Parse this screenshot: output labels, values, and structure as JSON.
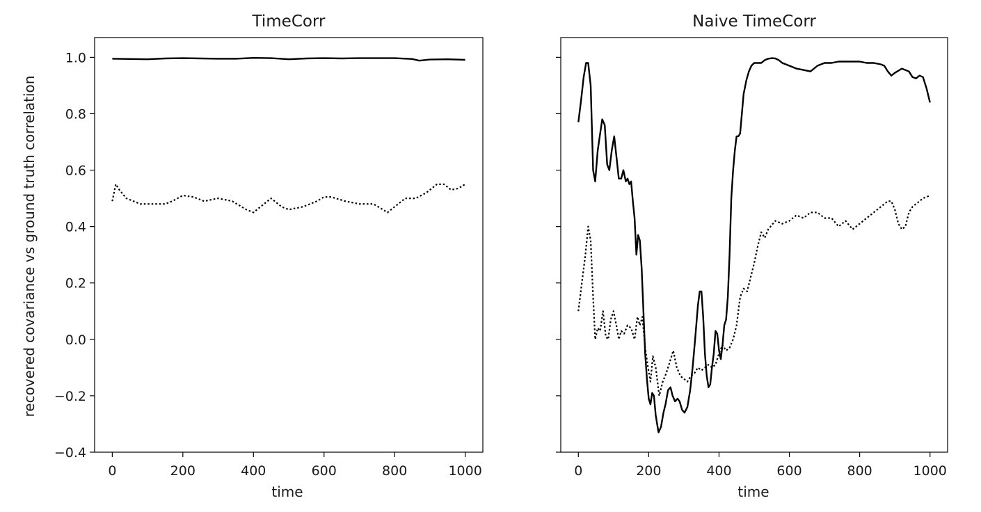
{
  "chart_data": [
    {
      "type": "line",
      "title": "TimeCorr",
      "xlabel": "time",
      "ylabel": "recovered covariance vs ground truth correlation",
      "xlim": [
        -50,
        1050
      ],
      "ylim": [
        -0.4,
        1.07
      ],
      "xticks": [
        0,
        200,
        400,
        600,
        800,
        1000
      ],
      "xtick_labels": [
        "0",
        "200",
        "400",
        "600",
        "800",
        "1000"
      ],
      "yticks": [
        -0.4,
        -0.2,
        0.0,
        0.2,
        0.4,
        0.6,
        0.8,
        1.0
      ],
      "ytick_labels": [
        "−0.4",
        "−0.2",
        "0.0",
        "0.2",
        "0.4",
        "0.6",
        "0.8",
        "1.0"
      ],
      "grid": false,
      "series": [
        {
          "style": "solid",
          "color": "#000000",
          "x": [
            0,
            50,
            100,
            150,
            200,
            250,
            300,
            350,
            400,
            450,
            500,
            550,
            600,
            650,
            700,
            750,
            800,
            850,
            870,
            900,
            950,
            1000
          ],
          "y": [
            0.995,
            0.994,
            0.993,
            0.996,
            0.997,
            0.996,
            0.995,
            0.995,
            0.998,
            0.997,
            0.993,
            0.996,
            0.997,
            0.996,
            0.997,
            0.997,
            0.997,
            0.994,
            0.988,
            0.992,
            0.993,
            0.991
          ]
        },
        {
          "style": "dotted",
          "color": "#000000",
          "x": [
            0,
            10,
            20,
            40,
            60,
            80,
            100,
            120,
            150,
            170,
            200,
            230,
            260,
            300,
            340,
            380,
            400,
            420,
            450,
            480,
            500,
            540,
            580,
            600,
            620,
            660,
            700,
            740,
            760,
            780,
            800,
            830,
            860,
            890,
            920,
            940,
            960,
            980,
            1000
          ],
          "y": [
            0.49,
            0.55,
            0.53,
            0.5,
            0.49,
            0.48,
            0.48,
            0.48,
            0.48,
            0.49,
            0.51,
            0.505,
            0.49,
            0.5,
            0.49,
            0.46,
            0.45,
            0.47,
            0.5,
            0.47,
            0.46,
            0.47,
            0.49,
            0.505,
            0.505,
            0.49,
            0.48,
            0.48,
            0.465,
            0.45,
            0.47,
            0.5,
            0.5,
            0.52,
            0.55,
            0.55,
            0.53,
            0.535,
            0.55
          ]
        }
      ]
    },
    {
      "type": "line",
      "title": "Naive TimeCorr",
      "xlabel": "time",
      "xlim": [
        -50,
        1050
      ],
      "ylim": [
        -0.4,
        1.07
      ],
      "xticks": [
        0,
        200,
        400,
        600,
        800,
        1000
      ],
      "xtick_labels": [
        "0",
        "200",
        "400",
        "600",
        "800",
        "1000"
      ],
      "yticks": [
        -0.4,
        -0.2,
        0.0,
        0.2,
        0.4,
        0.6,
        0.8,
        1.0
      ],
      "ytick_labels": [],
      "grid": false,
      "series": [
        {
          "style": "solid",
          "color": "#000000",
          "x": [
            0,
            8,
            15,
            22,
            28,
            35,
            42,
            48,
            55,
            62,
            68,
            75,
            82,
            88,
            95,
            102,
            108,
            115,
            122,
            128,
            135,
            140,
            145,
            150,
            155,
            160,
            165,
            170,
            175,
            180,
            185,
            190,
            195,
            200,
            205,
            210,
            215,
            220,
            228,
            235,
            242,
            248,
            255,
            262,
            268,
            275,
            282,
            288,
            295,
            302,
            310,
            318,
            325,
            332,
            340,
            345,
            350,
            355,
            360,
            365,
            370,
            375,
            380,
            385,
            390,
            395,
            400,
            405,
            410,
            415,
            420,
            425,
            430,
            435,
            440,
            445,
            450,
            455,
            460,
            465,
            470,
            478,
            485,
            492,
            500,
            510,
            520,
            530,
            540,
            550,
            560,
            570,
            580,
            590,
            600,
            620,
            640,
            660,
            680,
            700,
            720,
            740,
            760,
            780,
            800,
            820,
            840,
            860,
            870,
            880,
            890,
            900,
            920,
            940,
            950,
            960,
            970,
            980,
            990,
            1000
          ],
          "y": [
            0.77,
            0.85,
            0.93,
            0.98,
            0.98,
            0.9,
            0.6,
            0.56,
            0.67,
            0.73,
            0.78,
            0.76,
            0.62,
            0.6,
            0.67,
            0.72,
            0.65,
            0.57,
            0.57,
            0.6,
            0.56,
            0.57,
            0.55,
            0.56,
            0.49,
            0.43,
            0.3,
            0.37,
            0.35,
            0.25,
            0.1,
            -0.05,
            -0.14,
            -0.21,
            -0.23,
            -0.19,
            -0.2,
            -0.27,
            -0.33,
            -0.31,
            -0.26,
            -0.23,
            -0.18,
            -0.17,
            -0.2,
            -0.22,
            -0.21,
            -0.22,
            -0.25,
            -0.26,
            -0.24,
            -0.18,
            -0.1,
            0.0,
            0.12,
            0.17,
            0.17,
            0.08,
            -0.05,
            -0.13,
            -0.17,
            -0.16,
            -0.1,
            -0.05,
            0.03,
            0.02,
            -0.04,
            -0.07,
            -0.02,
            0.05,
            0.07,
            0.15,
            0.3,
            0.5,
            0.6,
            0.67,
            0.72,
            0.72,
            0.73,
            0.8,
            0.87,
            0.92,
            0.95,
            0.97,
            0.98,
            0.98,
            0.98,
            0.99,
            0.995,
            0.997,
            0.996,
            0.99,
            0.98,
            0.975,
            0.97,
            0.96,
            0.955,
            0.95,
            0.97,
            0.98,
            0.98,
            0.985,
            0.985,
            0.985,
            0.985,
            0.98,
            0.98,
            0.975,
            0.97,
            0.95,
            0.935,
            0.945,
            0.96,
            0.95,
            0.93,
            0.925,
            0.935,
            0.93,
            0.89,
            0.84
          ]
        },
        {
          "style": "dotted",
          "color": "#000000",
          "x": [
            0,
            10,
            20,
            28,
            35,
            42,
            48,
            55,
            62,
            70,
            78,
            85,
            92,
            100,
            108,
            115,
            122,
            130,
            140,
            150,
            160,
            168,
            175,
            182,
            190,
            198,
            205,
            212,
            220,
            230,
            240,
            250,
            260,
            270,
            280,
            290,
            300,
            310,
            320,
            330,
            340,
            350,
            360,
            370,
            380,
            390,
            400,
            410,
            420,
            430,
            440,
            450,
            460,
            470,
            480,
            490,
            500,
            510,
            520,
            530,
            540,
            560,
            580,
            600,
            620,
            640,
            660,
            680,
            700,
            720,
            740,
            760,
            780,
            800,
            830,
            860,
            870,
            880,
            890,
            900,
            910,
            920,
            930,
            940,
            950,
            960,
            970,
            980,
            1000
          ],
          "y": [
            0.1,
            0.2,
            0.3,
            0.4,
            0.35,
            0.15,
            0.0,
            0.04,
            0.03,
            0.1,
            0.01,
            0.0,
            0.07,
            0.1,
            0.05,
            0.0,
            0.03,
            0.02,
            0.05,
            0.04,
            0.0,
            0.08,
            0.05,
            0.08,
            -0.03,
            -0.1,
            -0.15,
            -0.06,
            -0.1,
            -0.2,
            -0.15,
            -0.12,
            -0.08,
            -0.04,
            -0.1,
            -0.13,
            -0.14,
            -0.15,
            -0.13,
            -0.12,
            -0.1,
            -0.11,
            -0.1,
            -0.09,
            -0.1,
            -0.09,
            -0.05,
            -0.02,
            -0.04,
            -0.03,
            0.0,
            0.05,
            0.15,
            0.18,
            0.17,
            0.22,
            0.27,
            0.33,
            0.38,
            0.36,
            0.39,
            0.42,
            0.41,
            0.42,
            0.44,
            0.43,
            0.45,
            0.45,
            0.43,
            0.43,
            0.4,
            0.42,
            0.39,
            0.41,
            0.44,
            0.47,
            0.48,
            0.49,
            0.49,
            0.46,
            0.41,
            0.39,
            0.4,
            0.45,
            0.47,
            0.48,
            0.49,
            0.5,
            0.51
          ]
        }
      ]
    }
  ]
}
